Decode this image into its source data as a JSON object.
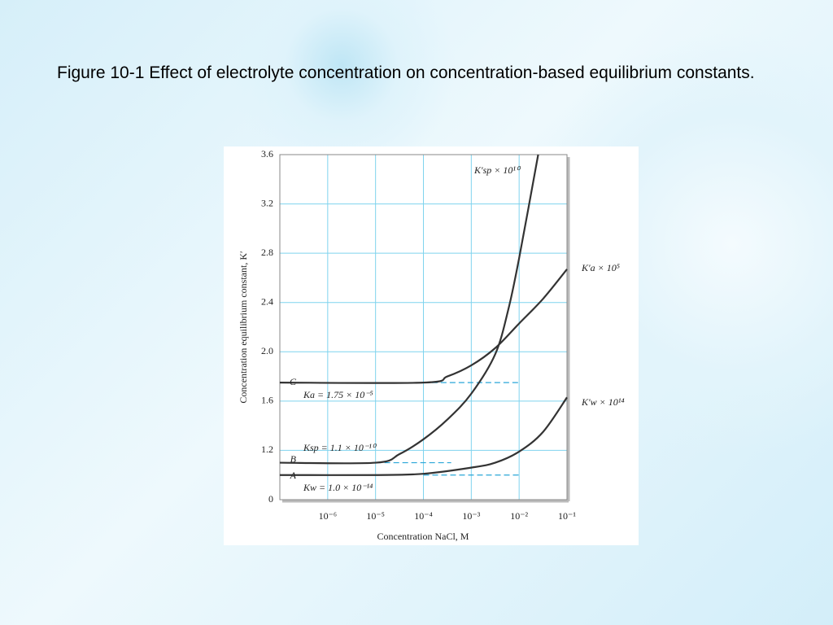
{
  "header": {
    "title": "Figure 10-1 Effect of electrolyte concentration on concentration-based equilibrium constants."
  },
  "chart_data": {
    "type": "line",
    "x_label": "Concentration NaCl, M",
    "y_label": "Concentration equilibrium constant, K′",
    "xlim": [
      1e-07,
      0.1
    ],
    "log_x": true,
    "xticks": [
      {
        "value": 1e-06,
        "label": "10⁻⁶"
      },
      {
        "value": 1e-05,
        "label": "10⁻⁵"
      },
      {
        "value": 0.0001,
        "label": "10⁻⁴"
      },
      {
        "value": 0.001,
        "label": "10⁻³"
      },
      {
        "value": 0.01,
        "label": "10⁻²"
      },
      {
        "value": 0.1,
        "label": "10⁻¹"
      }
    ],
    "ylim": [
      0,
      3.6
    ],
    "y_break": [
      0,
      0.8
    ],
    "yticks": [
      0,
      1.2,
      1.6,
      {
        "value": 2.0,
        "label": "2.0"
      },
      2.4,
      2.8,
      3.2,
      3.6
    ],
    "grid": true,
    "grid_color": "#7fd3ee",
    "series": [
      {
        "name": "K′w × 10¹⁴",
        "letter": "A",
        "limit_label": "Kw = 1.0 × 10⁻¹⁴",
        "color": "#333333",
        "x": [
          1e-07,
          1e-05,
          0.0001,
          0.001,
          0.00316,
          0.01,
          0.0316,
          0.1
        ],
        "values": [
          1.0,
          1.0,
          1.01,
          1.06,
          1.1,
          1.19,
          1.35,
          1.63
        ]
      },
      {
        "name": "K′sp × 10¹⁰",
        "letter": "B",
        "limit_label": "Ksp = 1.1 × 10⁻¹⁰",
        "color": "#333333",
        "x": [
          1e-07,
          1e-05,
          3.16e-05,
          0.0001,
          0.000316,
          0.001,
          0.00316,
          0.006,
          0.01,
          0.025
        ],
        "values": [
          1.1,
          1.1,
          1.17,
          1.29,
          1.45,
          1.66,
          1.98,
          2.35,
          2.76,
          3.6
        ]
      },
      {
        "name": "K′a × 10⁵",
        "letter": "C",
        "limit_label": "Ka = 1.75 × 10⁻⁵",
        "color": "#333333",
        "x": [
          1e-07,
          0.0001,
          0.000316,
          0.001,
          0.00316,
          0.01,
          0.0316,
          0.1
        ],
        "values": [
          1.75,
          1.75,
          1.8,
          1.89,
          2.03,
          2.23,
          2.43,
          2.67
        ]
      }
    ],
    "reference_lines": [
      {
        "y": 1.0,
        "x": [
          0.0001,
          0.01
        ]
      },
      {
        "y": 1.1,
        "x": [
          1e-05,
          0.00038
        ]
      },
      {
        "y": 1.75,
        "x": [
          0.00015,
          0.01
        ]
      }
    ],
    "reference_color": "#2aa6d8"
  }
}
